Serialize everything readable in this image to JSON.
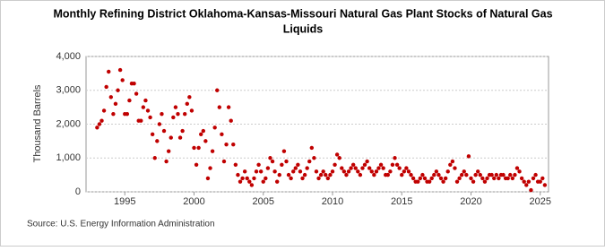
{
  "chart_data": {
    "type": "scatter",
    "title": "Monthly Refining District Oklahoma-Kansas-Missouri Natural Gas Plant Stocks of Natural Gas",
    "title_line2": "Liquids",
    "y_label": "Thousand Barrels",
    "source": "Source: U.S. Energy Information Administration",
    "color": "#c00000",
    "grid": true,
    "xlim": [
      1992.2,
      2025.6
    ],
    "ylim": [
      0,
      4000
    ],
    "xticks": [
      1995,
      2000,
      2005,
      2010,
      2015,
      2020,
      2025
    ],
    "yticks": [
      0,
      {
        "value": 1000,
        "label": "1,000"
      },
      {
        "value": 2000,
        "label": "2,000"
      },
      {
        "value": 3000,
        "label": "3,000"
      },
      {
        "value": 4000,
        "label": "4,000"
      }
    ],
    "x": [
      1993,
      1993.167,
      1993.333,
      1993.5,
      1993.667,
      1993.833,
      1994,
      1994.167,
      1994.333,
      1994.5,
      1994.667,
      1994.833,
      1995,
      1995.167,
      1995.333,
      1995.5,
      1995.667,
      1995.833,
      1996,
      1996.167,
      1996.333,
      1996.5,
      1996.667,
      1996.833,
      1997,
      1997.167,
      1997.333,
      1997.5,
      1997.667,
      1997.833,
      1998,
      1998.167,
      1998.333,
      1998.5,
      1998.667,
      1998.833,
      1999,
      1999.167,
      1999.333,
      1999.5,
      1999.667,
      1999.833,
      2000,
      2000.167,
      2000.333,
      2000.5,
      2000.667,
      2000.833,
      2001,
      2001.167,
      2001.333,
      2001.5,
      2001.667,
      2001.833,
      2002,
      2002.167,
      2002.333,
      2002.5,
      2002.667,
      2002.833,
      2003,
      2003.167,
      2003.333,
      2003.5,
      2003.667,
      2003.833,
      2004,
      2004.167,
      2004.333,
      2004.5,
      2004.667,
      2004.833,
      2005,
      2005.167,
      2005.333,
      2005.5,
      2005.667,
      2005.833,
      2006,
      2006.167,
      2006.333,
      2006.5,
      2006.667,
      2006.833,
      2007,
      2007.167,
      2007.333,
      2007.5,
      2007.667,
      2007.833,
      2008,
      2008.167,
      2008.333,
      2008.5,
      2008.667,
      2008.833,
      2009,
      2009.167,
      2009.333,
      2009.5,
      2009.667,
      2009.833,
      2010,
      2010.167,
      2010.333,
      2010.5,
      2010.667,
      2010.833,
      2011,
      2011.167,
      2011.333,
      2011.5,
      2011.667,
      2011.833,
      2012,
      2012.167,
      2012.333,
      2012.5,
      2012.667,
      2012.833,
      2013,
      2013.167,
      2013.333,
      2013.5,
      2013.667,
      2013.833,
      2014,
      2014.167,
      2014.333,
      2014.5,
      2014.667,
      2014.833,
      2015,
      2015.167,
      2015.333,
      2015.5,
      2015.667,
      2015.833,
      2016,
      2016.167,
      2016.333,
      2016.5,
      2016.667,
      2016.833,
      2017,
      2017.167,
      2017.333,
      2017.5,
      2017.667,
      2017.833,
      2018,
      2018.167,
      2018.333,
      2018.5,
      2018.667,
      2018.833,
      2019,
      2019.167,
      2019.333,
      2019.5,
      2019.667,
      2019.833,
      2020,
      2020.167,
      2020.333,
      2020.5,
      2020.667,
      2020.833,
      2021,
      2021.167,
      2021.333,
      2021.5,
      2021.667,
      2021.833,
      2022,
      2022.167,
      2022.333,
      2022.5,
      2022.667,
      2022.833,
      2023,
      2023.167,
      2023.333,
      2023.5,
      2023.667,
      2023.833,
      2024,
      2024.167,
      2024.333,
      2024.5,
      2024.667,
      2024.833,
      2025,
      2025.167,
      2025.333
    ],
    "values": [
      1900,
      2000,
      2100,
      2400,
      3100,
      3550,
      2800,
      2300,
      2600,
      3000,
      3600,
      3300,
      2300,
      2300,
      2700,
      3200,
      3200,
      2900,
      2100,
      2100,
      2500,
      2700,
      2400,
      2200,
      1700,
      1000,
      1500,
      2000,
      2300,
      1800,
      900,
      1200,
      1600,
      2200,
      2500,
      2300,
      1600,
      1800,
      2300,
      2600,
      2800,
      2400,
      1300,
      800,
      1300,
      1700,
      1800,
      1500,
      400,
      700,
      1200,
      1900,
      3000,
      2500,
      1700,
      900,
      1400,
      2500,
      2100,
      1400,
      800,
      500,
      300,
      400,
      600,
      400,
      300,
      200,
      400,
      600,
      800,
      600,
      300,
      400,
      700,
      1000,
      900,
      600,
      300,
      500,
      800,
      1200,
      900,
      500,
      400,
      600,
      700,
      800,
      600,
      400,
      500,
      700,
      900,
      1300,
      1000,
      600,
      400,
      500,
      600,
      500,
      400,
      500,
      600,
      800,
      1100,
      1000,
      700,
      600,
      500,
      600,
      700,
      800,
      700,
      600,
      500,
      700,
      800,
      900,
      700,
      600,
      500,
      600,
      700,
      800,
      700,
      500,
      500,
      600,
      800,
      1000,
      800,
      700,
      500,
      600,
      700,
      600,
      500,
      400,
      300,
      300,
      400,
      500,
      400,
      300,
      300,
      400,
      500,
      600,
      500,
      400,
      300,
      400,
      600,
      800,
      900,
      700,
      300,
      400,
      500,
      600,
      500,
      1050,
      400,
      300,
      500,
      600,
      500,
      400,
      300,
      400,
      500,
      500,
      400,
      500,
      400,
      500,
      500,
      400,
      400,
      500,
      400,
      500,
      700,
      600,
      400,
      300,
      200,
      300,
      50,
      400,
      500,
      300,
      300,
      400,
      200
    ]
  }
}
